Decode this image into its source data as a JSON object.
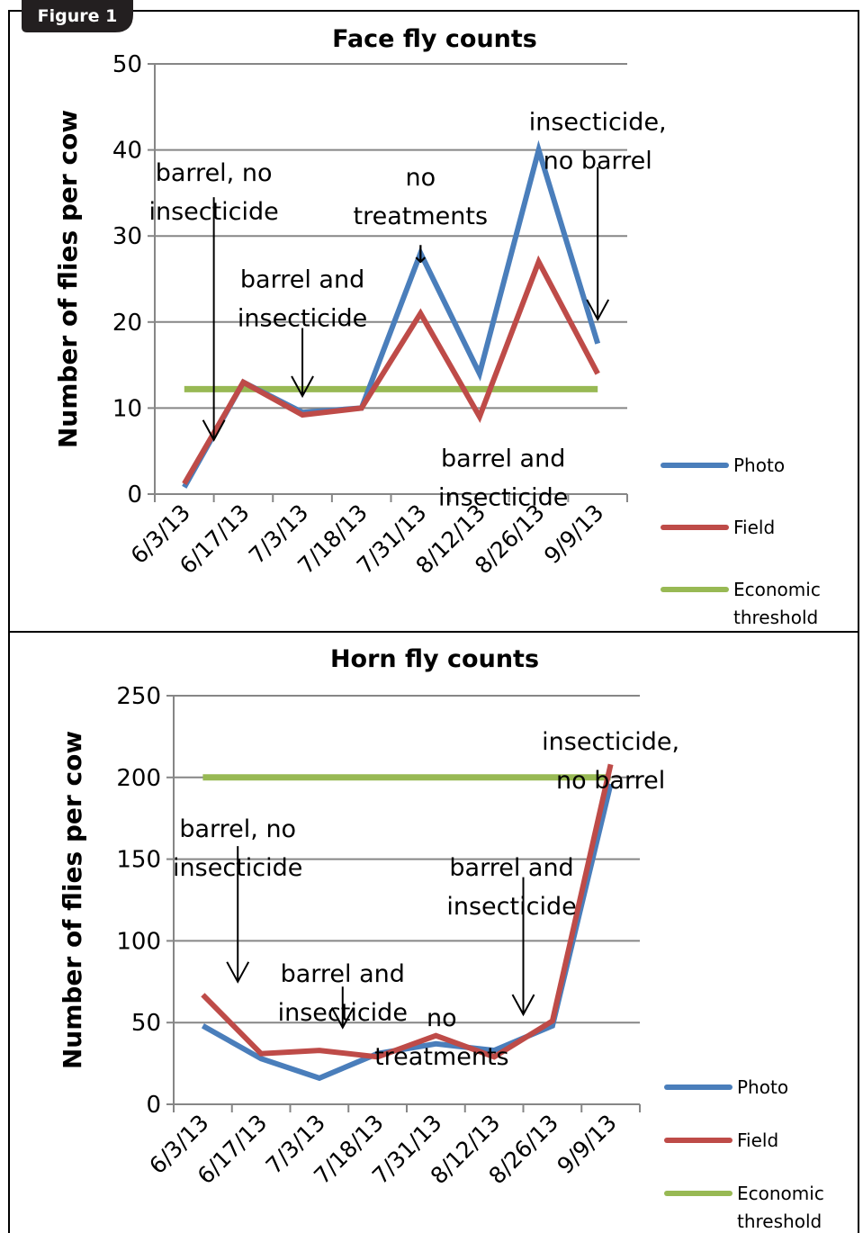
{
  "figure_label": "Figure 1",
  "colors": {
    "photo": "#4a7ebb",
    "field": "#be4b48",
    "threshold": "#98b954",
    "grid": "#868686",
    "badge": "#231f20"
  },
  "chart_data": [
    {
      "type": "line",
      "title": "Face fly counts",
      "xlabel": "",
      "ylabel": "Number of flies per cow",
      "ylim": [
        0,
        50
      ],
      "yticks": [
        "0",
        "10",
        "20",
        "30",
        "40",
        "50"
      ],
      "grid": true,
      "legend_position": "right",
      "categories": [
        "6/3/13",
        "6/17/13",
        "7/3/13",
        "7/18/13",
        "7/31/13",
        "8/12/13",
        "8/26/13",
        "9/9/13"
      ],
      "series": [
        {
          "name": "Photo",
          "color": "#4a7ebb",
          "values": [
            0.8,
            13,
            9.5,
            10,
            28,
            14,
            40,
            17.5
          ]
        },
        {
          "name": "Field",
          "color": "#be4b48",
          "values": [
            1.2,
            13,
            9.2,
            10,
            21,
            9,
            27,
            14
          ]
        },
        {
          "name": "Economic threshold",
          "color": "#98b954",
          "values": [
            12.2,
            12.2,
            12.2,
            12.2,
            12.2,
            12.2,
            12.2,
            12.2
          ]
        }
      ],
      "legend": [
        {
          "label": "Photo",
          "color": "#4a7ebb"
        },
        {
          "label": "Field",
          "color": "#be4b48"
        },
        {
          "label_lines": [
            "Economic",
            "threshold"
          ],
          "color": "#98b954"
        }
      ],
      "annotations": [
        {
          "lines": [
            "barrel, no",
            "insecticide"
          ],
          "x_index": 0.5,
          "y_value": 36.4
        },
        {
          "lines": [
            "barrel and",
            "insecticide"
          ],
          "x_index": 2,
          "y_value": 24
        },
        {
          "lines": [
            "no",
            "treatments",
            "↓"
          ],
          "x_index": 4,
          "y_value": 35.9
        },
        {
          "lines": [
            "barrel and",
            "insecticide"
          ],
          "x_index": 5.4,
          "y_value": 3.2
        },
        {
          "lines": [
            "insecticide,",
            "no barrel"
          ],
          "x_index": 7,
          "y_value": 42.3
        }
      ],
      "arrows": [
        {
          "x_index": 0.5,
          "y_from": 34.5,
          "y_to": 6.3
        },
        {
          "x_index": 2,
          "y_from": 19.3,
          "y_to": 11.4
        },
        {
          "x_index": 7,
          "y_from": 38,
          "y_to": 20.3
        }
      ]
    },
    {
      "type": "line",
      "title": "Horn fly counts",
      "xlabel": "",
      "ylabel": "Number of flies per cow",
      "ylim": [
        0,
        250
      ],
      "yticks": [
        "0",
        "50",
        "100",
        "150",
        "200",
        "250"
      ],
      "grid": true,
      "legend_position": "right",
      "categories": [
        "6/3/13",
        "6/17/13",
        "7/3/13",
        "7/18/13",
        "7/31/13",
        "8/12/13",
        "8/26/13",
        "9/9/13"
      ],
      "series": [
        {
          "name": "Photo",
          "color": "#4a7ebb",
          "values": [
            48,
            28,
            16,
            31,
            37,
            33,
            48,
            196
          ]
        },
        {
          "name": "Field",
          "color": "#be4b48",
          "values": [
            67,
            31,
            33,
            29,
            42,
            29,
            51,
            208
          ]
        },
        {
          "name": "Economic threshold",
          "color": "#98b954",
          "values": [
            200,
            200,
            200,
            200,
            200,
            200,
            200,
            200
          ]
        }
      ],
      "legend": [
        {
          "label": "Photo",
          "color": "#4a7ebb"
        },
        {
          "label": "Field",
          "color": "#be4b48"
        },
        {
          "label_lines": [
            "Economic",
            "threshold"
          ],
          "color": "#98b954"
        }
      ],
      "annotations": [
        {
          "lines": [
            "barrel, no",
            "insecticide"
          ],
          "x_index": 0.6,
          "y_value": 163.5
        },
        {
          "lines": [
            "barrel and",
            "insecticide"
          ],
          "x_index": 2.4,
          "y_value": 75
        },
        {
          "lines": [
            "no",
            "treatments"
          ],
          "x_index": 4.1,
          "y_value": 48
        },
        {
          "lines": [
            "barrel and",
            "insecticide"
          ],
          "x_index": 5.3,
          "y_value": 140
        },
        {
          "lines": [
            "insecticide,",
            "no barrel"
          ],
          "x_index": 7,
          "y_value": 217
        }
      ],
      "arrows": [
        {
          "x_index": 0.6,
          "y_from": 158,
          "y_to": 75
        },
        {
          "x_index": 2.4,
          "y_from": 72,
          "y_to": 47
        },
        {
          "x_index": 5.5,
          "y_from": 139,
          "y_to": 55
        }
      ]
    }
  ]
}
